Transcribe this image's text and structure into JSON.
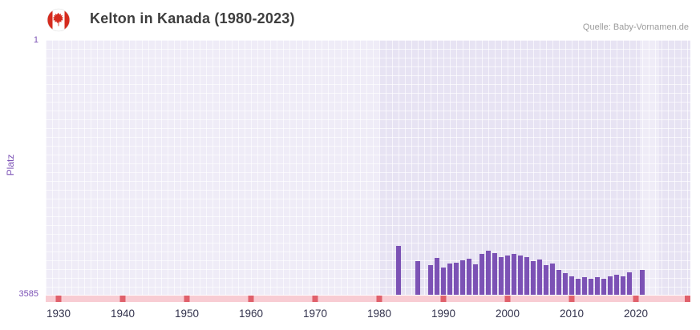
{
  "header": {
    "title": "Kelton in Kanada (1980-2023)",
    "source": "Quelle: Baby-Vornamen.de",
    "flag_icon": "canada-flag"
  },
  "chart_data": {
    "type": "bar",
    "title": "Kelton in Kanada (1980-2023)",
    "xlabel": "",
    "ylabel": "Platz",
    "legend": "none",
    "grid": true,
    "y_axis": {
      "min": 1,
      "max": 3585,
      "inverted": true,
      "top_label": "1",
      "bottom_label": "3585"
    },
    "x_axis": {
      "min": 1928,
      "max": 2028.5,
      "ticks": [
        1930,
        1940,
        1950,
        1960,
        1970,
        1980,
        1990,
        2000,
        2010,
        2020
      ]
    },
    "colors": {
      "bar": "#7c52b5",
      "axis_text": "#7b51b5",
      "tick_label": "#34344e",
      "band": "#f8ccd3",
      "marker": "#e0606b",
      "plot_bg": "#e7e3f3"
    },
    "plot_bands_lighter": [
      [
        1928,
        1980
      ],
      [
        2020.6,
        2023.6
      ]
    ],
    "right_edge_marker": true,
    "series": [
      {
        "year": 1983,
        "rank": 2900
      },
      {
        "year": 1986,
        "rank": 3110
      },
      {
        "year": 1988,
        "rank": 3170
      },
      {
        "year": 1989,
        "rank": 3070
      },
      {
        "year": 1990,
        "rank": 3200
      },
      {
        "year": 1991,
        "rank": 3150
      },
      {
        "year": 1992,
        "rank": 3130
      },
      {
        "year": 1993,
        "rank": 3100
      },
      {
        "year": 1994,
        "rank": 3080
      },
      {
        "year": 1995,
        "rank": 3160
      },
      {
        "year": 1996,
        "rank": 3010
      },
      {
        "year": 1997,
        "rank": 2970
      },
      {
        "year": 1998,
        "rank": 3000
      },
      {
        "year": 1999,
        "rank": 3050
      },
      {
        "year": 2000,
        "rank": 3030
      },
      {
        "year": 2001,
        "rank": 3010
      },
      {
        "year": 2002,
        "rank": 3030
      },
      {
        "year": 2003,
        "rank": 3060
      },
      {
        "year": 2004,
        "rank": 3110
      },
      {
        "year": 2005,
        "rank": 3090
      },
      {
        "year": 2006,
        "rank": 3170
      },
      {
        "year": 2007,
        "rank": 3150
      },
      {
        "year": 2008,
        "rank": 3230
      },
      {
        "year": 2009,
        "rank": 3280
      },
      {
        "year": 2010,
        "rank": 3330
      },
      {
        "year": 2011,
        "rank": 3360
      },
      {
        "year": 2012,
        "rank": 3340
      },
      {
        "year": 2013,
        "rank": 3360
      },
      {
        "year": 2014,
        "rank": 3340
      },
      {
        "year": 2015,
        "rank": 3360
      },
      {
        "year": 2016,
        "rank": 3330
      },
      {
        "year": 2017,
        "rank": 3300
      },
      {
        "year": 2018,
        "rank": 3330
      },
      {
        "year": 2019,
        "rank": 3270
      },
      {
        "year": 2021,
        "rank": 3240
      }
    ]
  }
}
